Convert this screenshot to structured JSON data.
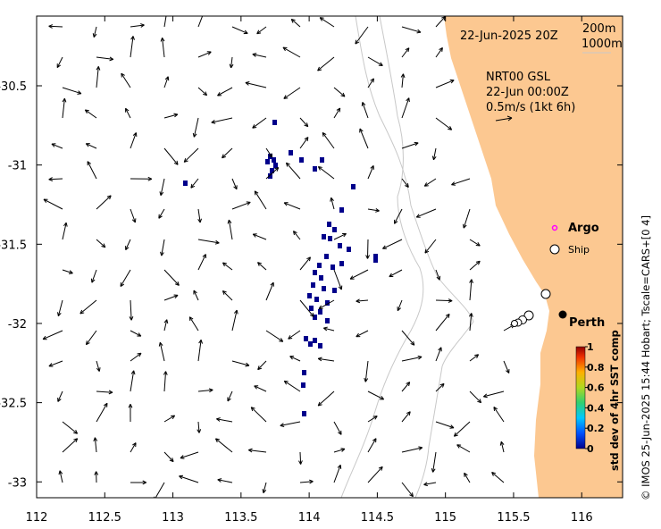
{
  "map": {
    "date_label": "22-Jun-2025 20Z",
    "depth_contours": [
      "200m",
      "1000m"
    ],
    "product": "NRT00 GSL",
    "product_time": "22-Jun 00:00Z",
    "scale_label": "0.5m/s (1kt 6h)",
    "legend": {
      "argo": "Argo",
      "ship": "Ship"
    },
    "place": "Perth",
    "colorbar": {
      "title": "std dev of 4hr SST comp",
      "ticks": [
        "0",
        "0.2",
        "0.4",
        "0.6",
        "0.8",
        "1"
      ]
    },
    "credit": "© IMOS 25-Jun-2025 15:44 Hobart; Tscale=CARS+[0 4]",
    "axes": {
      "x_ticks": [
        "112",
        "112.5",
        "113",
        "113.5",
        "114",
        "114.5",
        "115",
        "115.5",
        "116"
      ],
      "y_ticks": [
        "-30.5",
        "-31",
        "-31.5",
        "-32",
        "-32.5",
        "-33"
      ],
      "xlim": [
        112,
        116.3
      ],
      "ylim": [
        -33.1,
        -30.06
      ]
    },
    "colors": {
      "land": "#fcc891",
      "sst_cells": "#00008b",
      "contour": "#c8c8c8"
    }
  }
}
